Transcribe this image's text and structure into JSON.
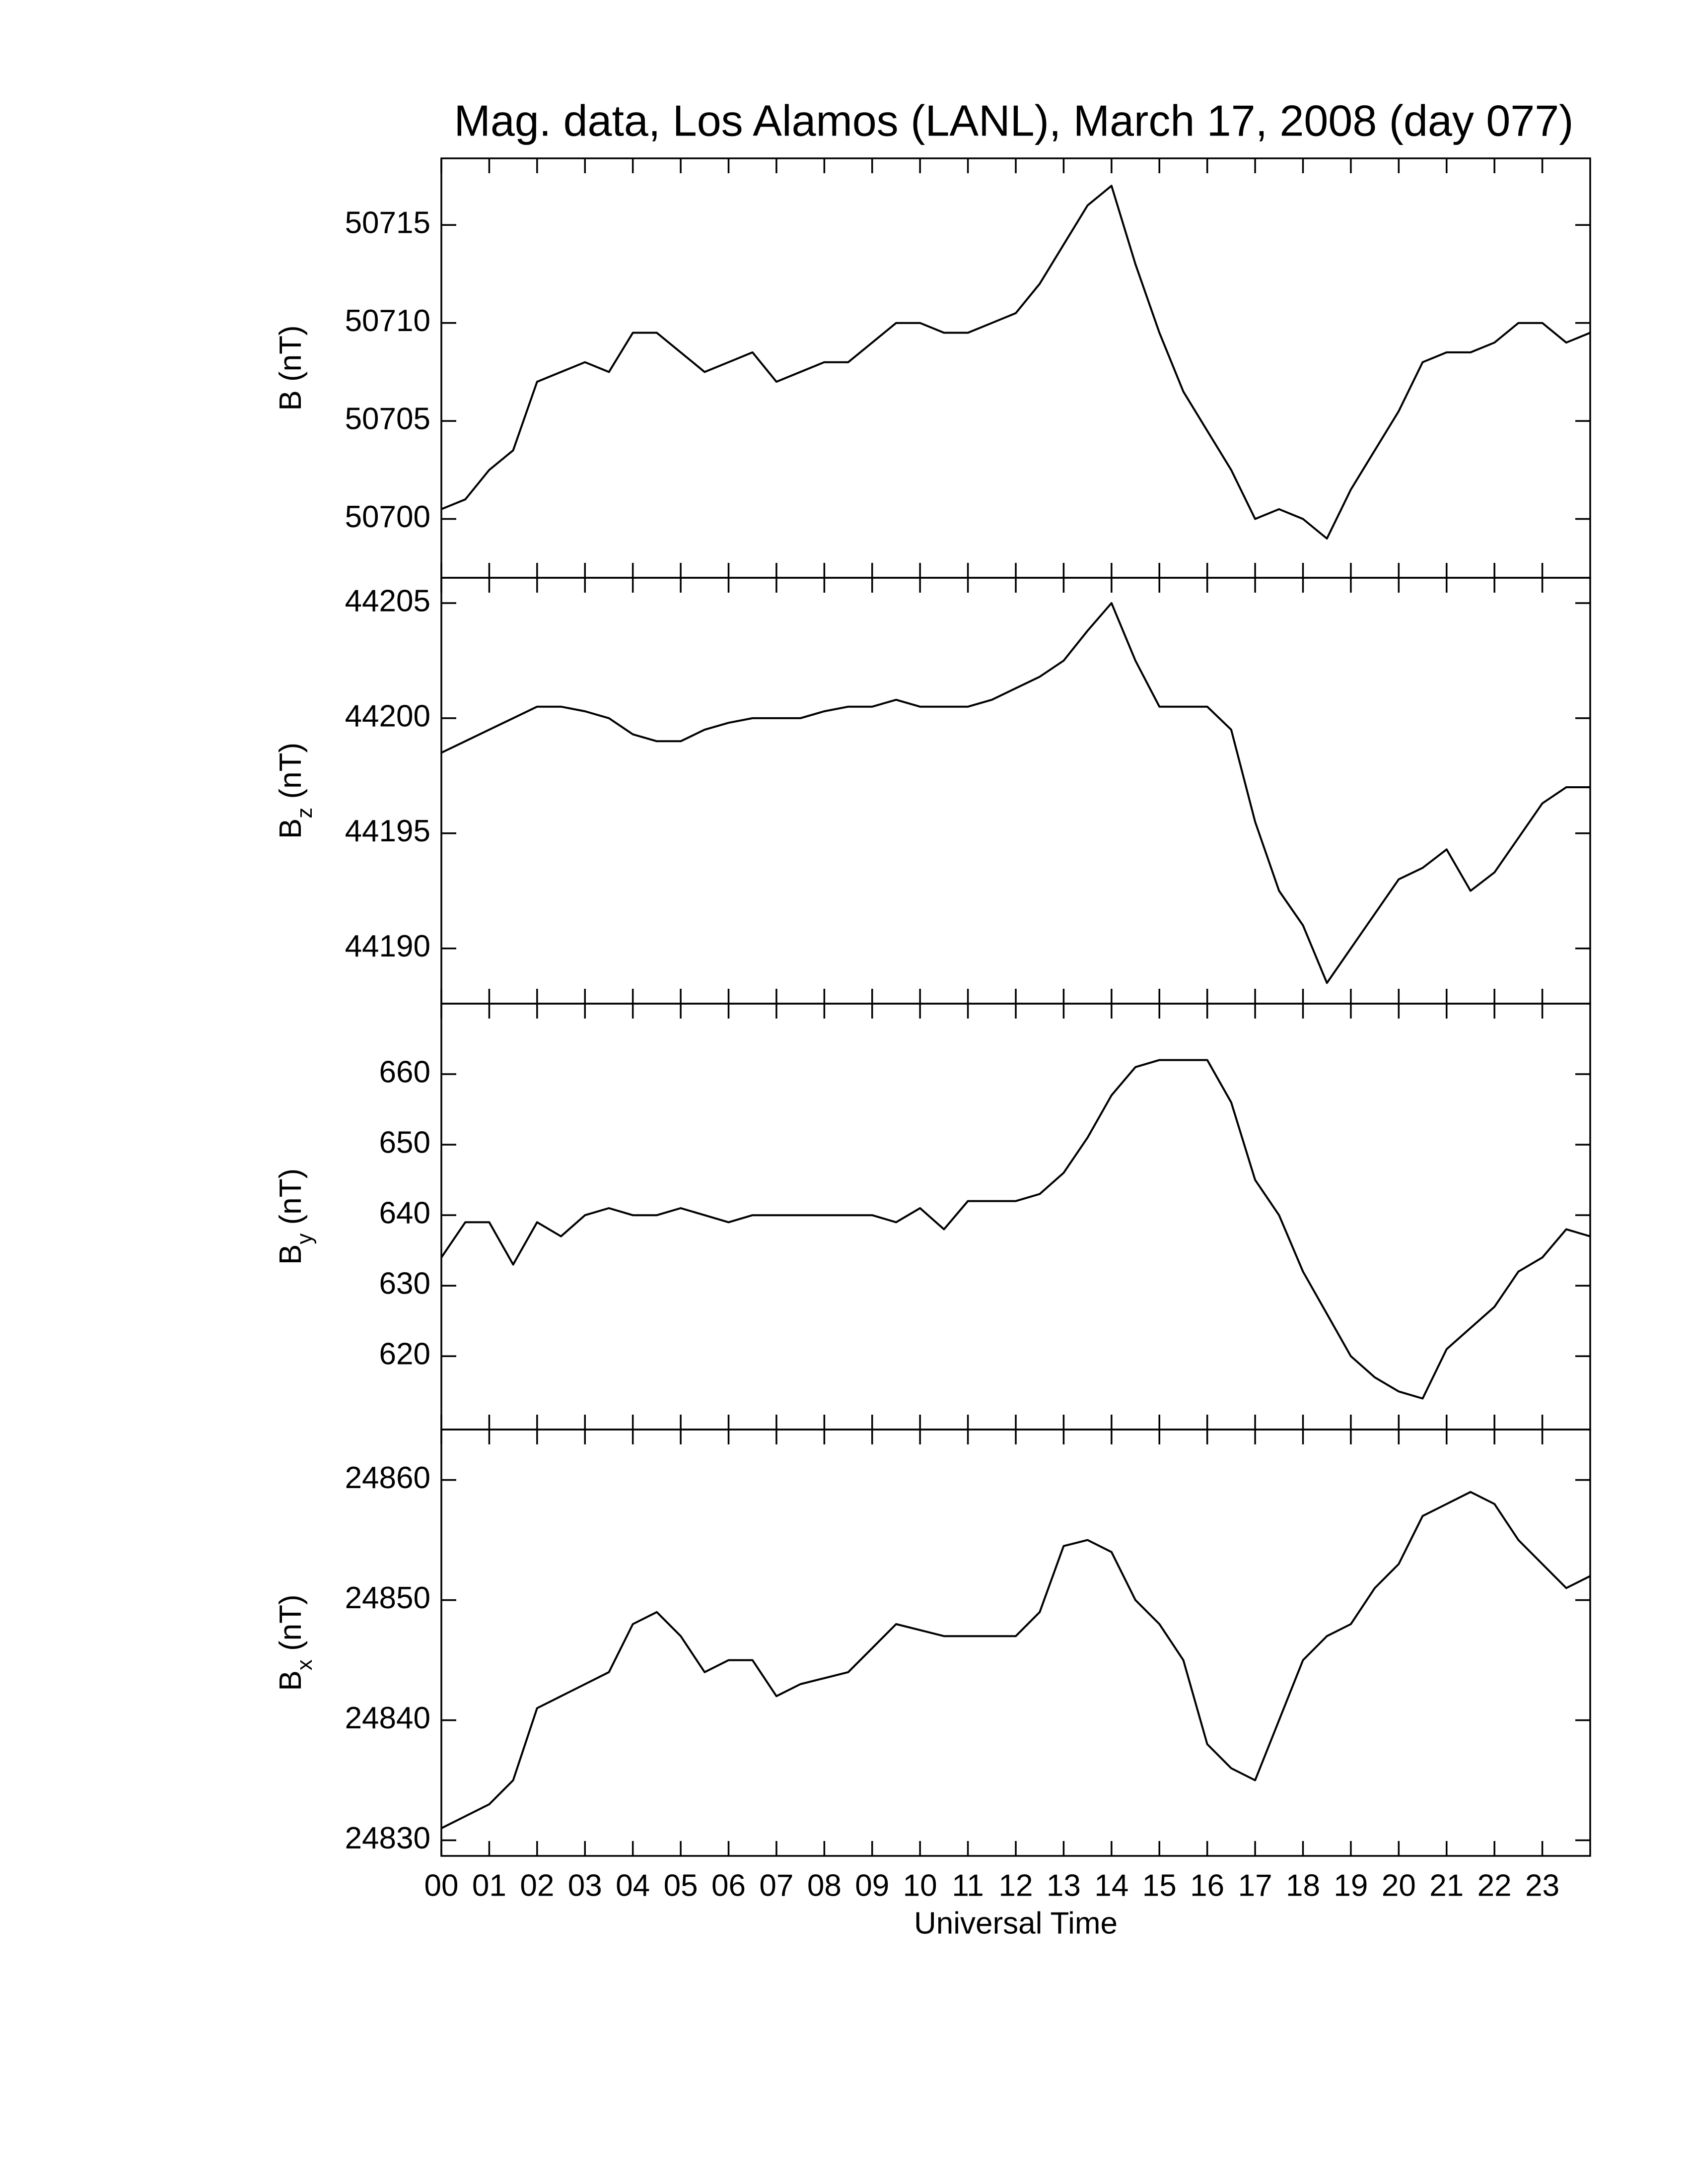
{
  "title": "Mag. data, Los Alamos (LANL), March 17, 2008 (day 077)",
  "chart_data": [
    {
      "type": "line",
      "ylabel": "B",
      "ylabel_unit": "(nT)",
      "color": "#000000",
      "ylim": [
        50697.0,
        50718.4
      ],
      "yticks": [
        50700,
        50705,
        50710,
        50715
      ],
      "x": [
        0,
        0.5,
        1,
        1.5,
        2,
        2.5,
        3,
        3.5,
        4,
        4.5,
        5,
        5.5,
        6,
        6.5,
        7,
        7.5,
        8,
        8.5,
        9,
        9.5,
        10,
        10.5,
        11,
        11.5,
        12,
        12.5,
        13,
        13.5,
        14,
        14.5,
        15,
        15.5,
        16,
        16.5,
        17,
        17.5,
        18,
        18.5,
        19,
        19.5,
        20,
        20.5,
        21,
        21.5,
        22,
        22.5,
        23,
        23.5,
        24
      ],
      "values": [
        50700.5,
        50701,
        50702.5,
        50703.5,
        50707,
        50707.5,
        50708,
        50707.5,
        50709.5,
        50709.5,
        50708.5,
        50707.5,
        50708,
        50708.5,
        50707,
        50707.5,
        50708,
        50708,
        50709,
        50710,
        50710,
        50709.5,
        50709.5,
        50710,
        50710.5,
        50712,
        50714,
        50716,
        50717,
        50713,
        50709.5,
        50706.5,
        50704.5,
        50702.5,
        50700,
        50700.5,
        50700,
        50699,
        50701.5,
        50703.5,
        50705.5,
        50708,
        50708.5,
        50708.5,
        50709,
        50710,
        50710,
        50709,
        50709.5
      ]
    },
    {
      "type": "line",
      "ylabel": "B",
      "ylabel_sub": "z",
      "ylabel_unit": "(nT)",
      "color": "#000000",
      "ylim": [
        44187.6,
        44206.1
      ],
      "yticks": [
        44190,
        44195,
        44200,
        44205
      ],
      "x": [
        0,
        0.5,
        1,
        1.5,
        2,
        2.5,
        3,
        3.5,
        4,
        4.5,
        5,
        5.5,
        6,
        6.5,
        7,
        7.5,
        8,
        8.5,
        9,
        9.5,
        10,
        10.5,
        11,
        11.5,
        12,
        12.5,
        13,
        13.5,
        14,
        14.5,
        15,
        15.5,
        16,
        16.5,
        17,
        17.5,
        18,
        18.5,
        19,
        19.5,
        20,
        20.5,
        21,
        21.5,
        22,
        22.5,
        23,
        23.5,
        24
      ],
      "values": [
        44198.5,
        44199,
        44199.5,
        44200,
        44200.5,
        44200.5,
        44200.3,
        44200,
        44199.3,
        44199,
        44199,
        44199.5,
        44199.8,
        44200,
        44200,
        44200,
        44200.3,
        44200.5,
        44200.5,
        44200.8,
        44200.5,
        44200.5,
        44200.5,
        44200.8,
        44201.3,
        44201.8,
        44202.5,
        44203.8,
        44205,
        44202.5,
        44200.5,
        44200.5,
        44200.5,
        44199.5,
        44195.5,
        44192.5,
        44191,
        44188.5,
        44190,
        44191.5,
        44193,
        44193.5,
        44194.3,
        44192.5,
        44193.3,
        44194.8,
        44196.3,
        44197,
        44197
      ]
    },
    {
      "type": "line",
      "ylabel": "B",
      "ylabel_sub": "y",
      "ylabel_unit": "(nT)",
      "color": "#000000",
      "ylim": [
        609.6,
        670
      ],
      "yticks": [
        620,
        630,
        640,
        650,
        660
      ],
      "x": [
        0,
        0.5,
        1,
        1.5,
        2,
        2.5,
        3,
        3.5,
        4,
        4.5,
        5,
        5.5,
        6,
        6.5,
        7,
        7.5,
        8,
        8.5,
        9,
        9.5,
        10,
        10.5,
        11,
        11.5,
        12,
        12.5,
        13,
        13.5,
        14,
        14.5,
        15,
        15.5,
        16,
        16.5,
        17,
        17.5,
        18,
        18.5,
        19,
        19.5,
        20,
        20.5,
        21,
        21.5,
        22,
        22.5,
        23,
        23.5,
        24
      ],
      "values": [
        634,
        639,
        639,
        633,
        639,
        637,
        640,
        641,
        640,
        640,
        641,
        640,
        639,
        640,
        640,
        640,
        640,
        640,
        640,
        639,
        641,
        638,
        642,
        642,
        642,
        643,
        646,
        651,
        657,
        661,
        662,
        662,
        662,
        656,
        645,
        640,
        632,
        626,
        620,
        617,
        615,
        614,
        621,
        624,
        627,
        632,
        634,
        638,
        637
      ]
    },
    {
      "type": "line",
      "ylabel": "B",
      "ylabel_sub": "x",
      "ylabel_unit": "(nT)",
      "color": "#000000",
      "ylim": [
        24828.7,
        24864.2
      ],
      "yticks": [
        24830,
        24840,
        24850,
        24860
      ],
      "xlabel": "Universal Time",
      "xlim": [
        0,
        24
      ],
      "xticks": [
        {
          "value": 0,
          "label": "00"
        },
        {
          "value": 1,
          "label": "01"
        },
        {
          "value": 2,
          "label": "02"
        },
        {
          "value": 3,
          "label": "03"
        },
        {
          "value": 4,
          "label": "04"
        },
        {
          "value": 5,
          "label": "05"
        },
        {
          "value": 6,
          "label": "06"
        },
        {
          "value": 7,
          "label": "07"
        },
        {
          "value": 8,
          "label": "08"
        },
        {
          "value": 9,
          "label": "09"
        },
        10,
        11,
        12,
        13,
        14,
        15,
        16,
        17,
        18,
        19,
        20,
        21,
        22,
        23
      ],
      "x": [
        0,
        0.5,
        1,
        1.5,
        2,
        2.5,
        3,
        3.5,
        4,
        4.5,
        5,
        5.5,
        6,
        6.5,
        7,
        7.5,
        8,
        8.5,
        9,
        9.5,
        10,
        10.5,
        11,
        11.5,
        12,
        12.5,
        13,
        13.5,
        14,
        14.5,
        15,
        15.5,
        16,
        16.5,
        17,
        17.5,
        18,
        18.5,
        19,
        19.5,
        20,
        20.5,
        21,
        21.5,
        22,
        22.5,
        23,
        23.5,
        24
      ],
      "values": [
        24831,
        24832,
        24833,
        24835,
        24841,
        24842,
        24843,
        24844,
        24848,
        24849,
        24847,
        24844,
        24845,
        24845,
        24842,
        24843,
        24843.5,
        24844,
        24846,
        24848,
        24847.5,
        24847,
        24847,
        24847,
        24847,
        24849,
        24854.5,
        24855,
        24854,
        24850,
        24848,
        24845,
        24838,
        24836,
        24835,
        24840,
        24845,
        24847,
        24848,
        24851,
        24853,
        24857,
        24858,
        24859,
        24858,
        24855,
        24853,
        24851,
        24852
      ]
    }
  ]
}
